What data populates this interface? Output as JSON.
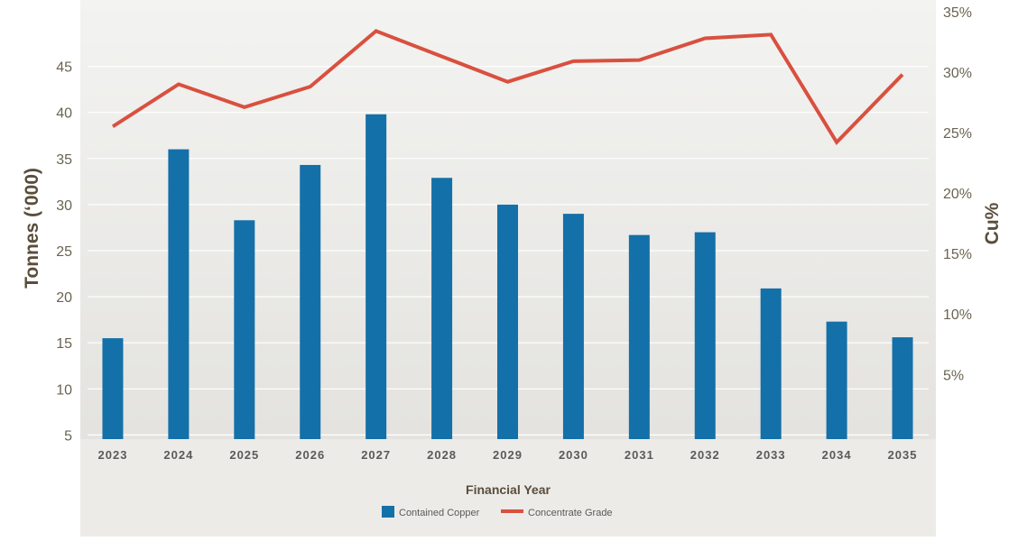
{
  "chart_data": {
    "type": "bar",
    "categories": [
      "2023",
      "2024",
      "2025",
      "2026",
      "2027",
      "2028",
      "2029",
      "2030",
      "2031",
      "2032",
      "2033",
      "2034",
      "2035"
    ],
    "series": [
      {
        "name": "Contained Copper",
        "type": "bar",
        "axis": "left",
        "color": "#1470a8",
        "values": [
          15.5,
          36,
          28.3,
          34.3,
          39.8,
          32.9,
          30,
          29,
          26.7,
          27,
          20.9,
          17.3,
          15.6
        ]
      },
      {
        "name": "Concentrate Grade",
        "type": "line",
        "axis": "right",
        "color": "#d9503f",
        "values": [
          25.5,
          29,
          27.1,
          28.8,
          33.4,
          31.3,
          29.2,
          30.9,
          31,
          32.8,
          33.1,
          24.2,
          29.8
        ]
      }
    ],
    "xlabel": "Financial Year",
    "ylabel": "Tonnes (‘000)",
    "y2label": "Cu%",
    "ylim": [
      0,
      45
    ],
    "y2lim": [
      0,
      35
    ],
    "yticks": [
      "5",
      "10",
      "15",
      "20",
      "25",
      "30",
      "35",
      "40",
      "45"
    ],
    "y2ticks": [
      "5%",
      "10%",
      "15%",
      "20%",
      "25%",
      "30%",
      "35%"
    ],
    "legend": {
      "placement": "bottom-center",
      "items": [
        "Contained Copper",
        "Concentrate Grade"
      ]
    },
    "grid": true,
    "colors": {
      "bar": "#1470a8",
      "line": "#d9503f",
      "axis_text": "#6a6450",
      "label_text": "#5a4d3a",
      "background": "#e7e6e3"
    }
  }
}
